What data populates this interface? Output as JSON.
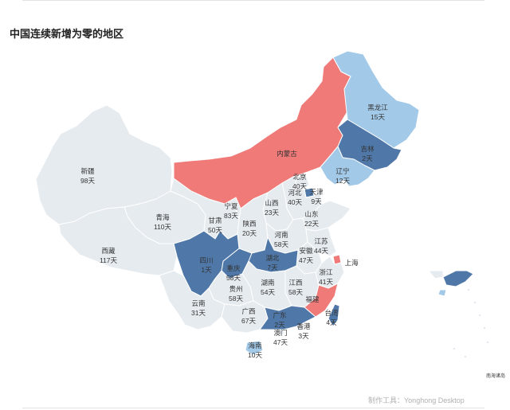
{
  "title": "中国连续新增为零的地区",
  "credit": "制作工具：Yonghong Desktop",
  "inset_label": "南海诸岛",
  "colors": {
    "default_region": "#e6ebf0",
    "dark_blue": "#4f78a8",
    "light_blue": "#a3c9e8",
    "red": "#ef7a78",
    "border": "#ffffff"
  },
  "regions": {
    "xinjiang": {
      "name": "新疆",
      "value": "98天"
    },
    "xizang": {
      "name": "西藏",
      "value": "117天"
    },
    "qinghai": {
      "name": "青海",
      "value": "110天"
    },
    "gansu": {
      "name": "甘肃",
      "value": "50天"
    },
    "ningxia": {
      "name": "宁夏",
      "value": "83天"
    },
    "neimenggu": {
      "name": "内蒙古",
      "value": ""
    },
    "heilongjiang": {
      "name": "黑龙江",
      "value": "15天"
    },
    "jilin": {
      "name": "吉林",
      "value": "2天"
    },
    "liaoning": {
      "name": "辽宁",
      "value": "12天"
    },
    "beijing": {
      "name": "北京",
      "value": "40天"
    },
    "tianjin": {
      "name": "天津",
      "value": "9天"
    },
    "hebei": {
      "name": "河北",
      "value": "40天"
    },
    "shanxi": {
      "name": "山西",
      "value": "23天"
    },
    "shandong": {
      "name": "山东",
      "value": "22天"
    },
    "shaanxi": {
      "name": "陕西",
      "value": "20天"
    },
    "henan": {
      "name": "河南",
      "value": "58天"
    },
    "jiangsu": {
      "name": "江苏",
      "value": "44天"
    },
    "anhui": {
      "name": "安徽",
      "value": "47天"
    },
    "shanghai": {
      "name": "上海",
      "value": ""
    },
    "sichuan": {
      "name": "四川",
      "value": "1天"
    },
    "chongqing": {
      "name": "重庆",
      "value": "58天"
    },
    "hubei": {
      "name": "湖北",
      "value": "7天"
    },
    "zhejiang": {
      "name": "浙江",
      "value": "41天"
    },
    "guizhou": {
      "name": "贵州",
      "value": "58天"
    },
    "hunan": {
      "name": "湖南",
      "value": "54天"
    },
    "jiangxi": {
      "name": "江西",
      "value": "58天"
    },
    "fujian": {
      "name": "福建",
      "value": ""
    },
    "yunnan": {
      "name": "云南",
      "value": "31天"
    },
    "guangxi": {
      "name": "广西",
      "value": "67天"
    },
    "guangdong": {
      "name": "广东",
      "value": "2天"
    },
    "taiwan": {
      "name": "台湾",
      "value": "4天"
    },
    "macau": {
      "name": "澳门",
      "value": "47天"
    },
    "hongkong": {
      "name": "香港",
      "value": "3天"
    },
    "hainan": {
      "name": "海南",
      "value": "10天"
    }
  }
}
